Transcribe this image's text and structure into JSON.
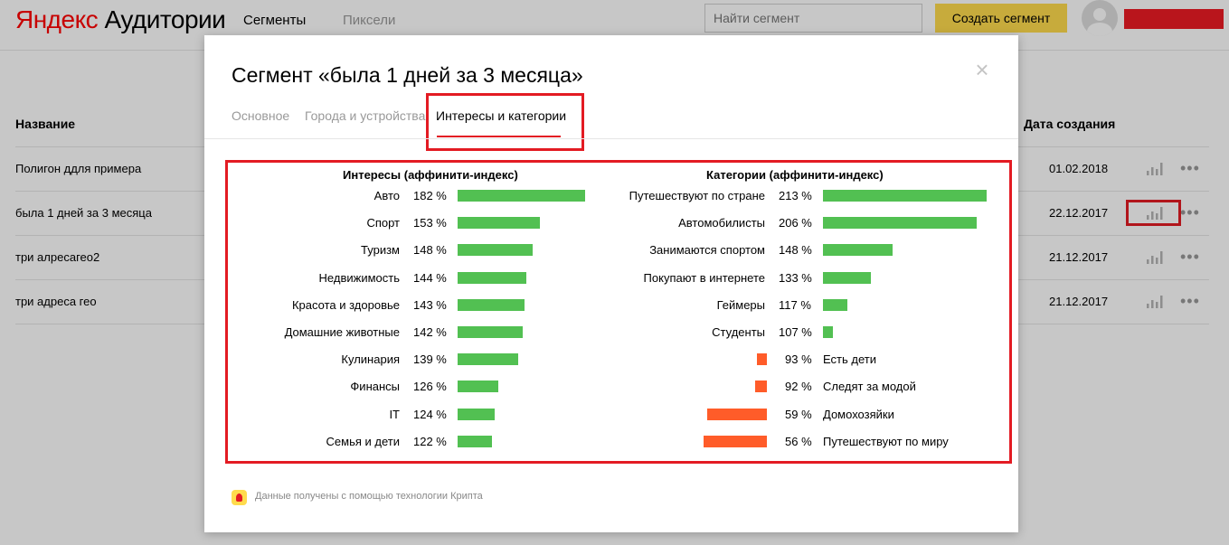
{
  "header": {
    "logo_yandex": "Яндекс",
    "logo_product": "Аудитории",
    "nav": {
      "segments": "Сегменты",
      "pixels": "Пиксели"
    },
    "search_placeholder": "Найти сегмент",
    "create_button": "Создать сегмент"
  },
  "table": {
    "col_name": "Название",
    "col_date": "Дата создания",
    "rows": [
      {
        "name": "Полигон ддля примера",
        "date": "01.02.2018"
      },
      {
        "name": "была 1 дней за 3 месяца",
        "date": "22.12.2017"
      },
      {
        "name": "три алресагео2",
        "date": "21.12.2017"
      },
      {
        "name": "три адреса гео",
        "date": "21.12.2017"
      }
    ],
    "more_glyph": "•••"
  },
  "modal": {
    "title": "Сегмент «была 1 дней за 3 месяца»",
    "close_glyph": "×",
    "tabs": {
      "basic": "Основное",
      "geo": "Города и устройства",
      "interests": "Интересы и категории"
    },
    "footer_text": "Данные получены с помощью технологии Крипта"
  },
  "colors": {
    "above_avg": "#52c052",
    "below_avg": "#ff5c29",
    "highlight": "#e31b23",
    "accent_button": "#ffdb4d"
  },
  "chart_data": [
    {
      "type": "bar",
      "title": "Интересы (аффинити-индекс)",
      "categories": [
        "Авто",
        "Спорт",
        "Туризм",
        "Недвижимость",
        "Красота и здоровье",
        "Домашние животные",
        "Кулинария",
        "Финансы",
        "IT",
        "Семья и дети"
      ],
      "values": [
        182,
        153,
        148,
        144,
        143,
        142,
        139,
        126,
        124,
        122
      ],
      "labels": [
        "182 %",
        "153 %",
        "148 %",
        "144 %",
        "143 %",
        "142 %",
        "139 %",
        "126 %",
        "124 %",
        "122 %"
      ]
    },
    {
      "type": "bar",
      "title": "Категории (аффинити-индекс)",
      "categories": [
        "Путешествуют по стране",
        "Автомобилисты",
        "Занимаются спортом",
        "Покупают в интернете",
        "Геймеры",
        "Студенты",
        "Есть дети",
        "Следят за модой",
        "Домохозяйки",
        "Путешествуют по миру"
      ],
      "values": [
        213,
        206,
        148,
        133,
        117,
        107,
        93,
        92,
        59,
        56
      ],
      "labels": [
        "213 %",
        "206 %",
        "148 %",
        "133 %",
        "117 %",
        "107 %",
        "93 %",
        "92 %",
        "59 %",
        "56 %"
      ]
    }
  ]
}
